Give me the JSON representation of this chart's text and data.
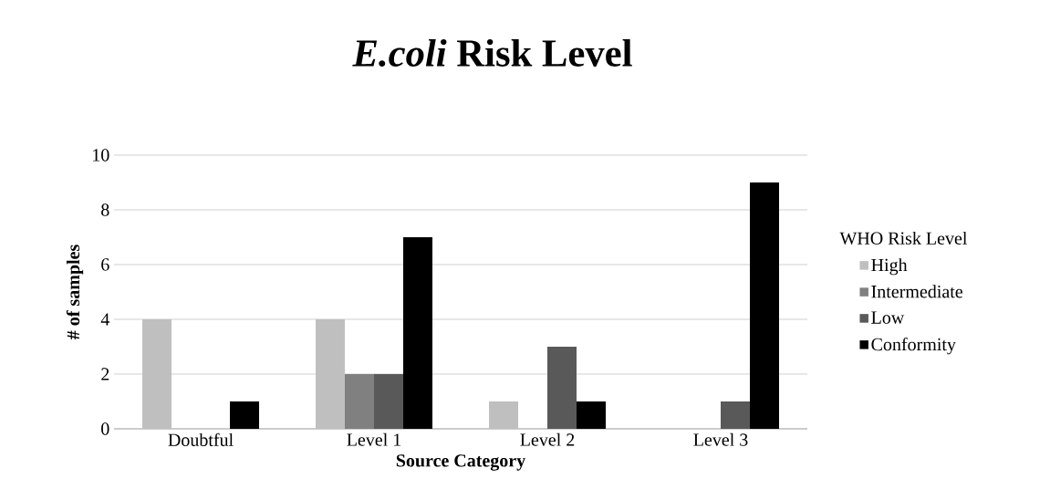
{
  "chart_data": {
    "type": "bar",
    "title": "*E.coli* Risk Level",
    "xlabel": "Source Category",
    "ylabel": "# of samples",
    "legend_title": "WHO Risk Level",
    "categories": [
      "Doubtful",
      "Level 1",
      "Level 2",
      "Level 3"
    ],
    "series": [
      {
        "name": "High",
        "color": "#bfbfbf",
        "values": [
          4,
          4,
          1,
          0
        ]
      },
      {
        "name": "Intermediate",
        "color": "#808080",
        "values": [
          0,
          2,
          0,
          0
        ]
      },
      {
        "name": "Low",
        "color": "#595959",
        "values": [
          0,
          2,
          3,
          1
        ]
      },
      {
        "name": "Conformity",
        "color": "#000000",
        "values": [
          1,
          7,
          1,
          9
        ]
      }
    ],
    "ylim": [
      0,
      10
    ],
    "yticks": [
      0,
      2,
      4,
      6,
      8,
      10
    ],
    "grid": "y",
    "legend": "right"
  }
}
